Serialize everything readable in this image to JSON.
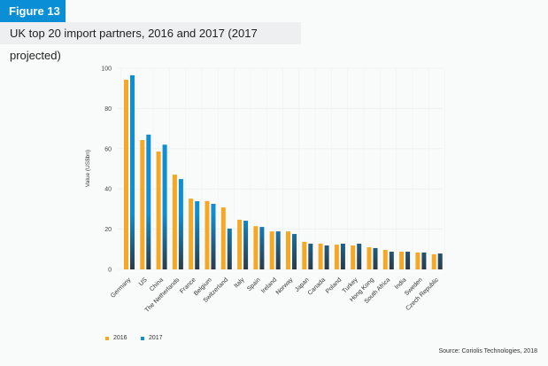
{
  "figure": {
    "badge": "Figure 13",
    "title": "UK top 20 import partners, 2016 and 2017 (2017 projected)",
    "source": "Source: Coriolis Technologies, 2018"
  },
  "colors": {
    "badge": "#0a8fd6",
    "series_2016": "#f7a823",
    "series_2017": "#0e8fd3",
    "series_base_dark": "#2b3a47"
  },
  "chart_data": {
    "type": "bar",
    "title": "UK top 20 import partners, 2016 and 2017 (2017 projected)",
    "xlabel": "",
    "ylabel": "Value (US$bn)",
    "ylim": [
      0,
      100
    ],
    "yticks": [
      0,
      20,
      40,
      60,
      80,
      100
    ],
    "grid": true,
    "legend_position": "bottom-left",
    "categories": [
      "Germany",
      "US",
      "China",
      "The Netherlands",
      "France",
      "Belgium",
      "Switzerland",
      "Italy",
      "Spain",
      "Ireland",
      "Norway",
      "Japan",
      "Canada",
      "Poland",
      "Turkey",
      "Hong Kong",
      "South Africa",
      "India",
      "Sweden",
      "Czech Republic"
    ],
    "series": [
      {
        "name": "2016",
        "values": [
          94.3,
          64.3,
          58.6,
          47.1,
          35.2,
          34.0,
          30.8,
          24.7,
          21.5,
          18.9,
          18.9,
          13.7,
          12.8,
          12.3,
          11.9,
          11.0,
          9.7,
          8.8,
          8.4,
          7.5
        ]
      },
      {
        "name": "2017",
        "values": [
          96.5,
          67.0,
          62.0,
          44.9,
          33.9,
          32.6,
          20.3,
          24.2,
          21.1,
          18.9,
          17.6,
          12.8,
          11.9,
          12.8,
          12.8,
          10.6,
          8.8,
          8.8,
          8.4,
          7.9
        ]
      }
    ]
  }
}
